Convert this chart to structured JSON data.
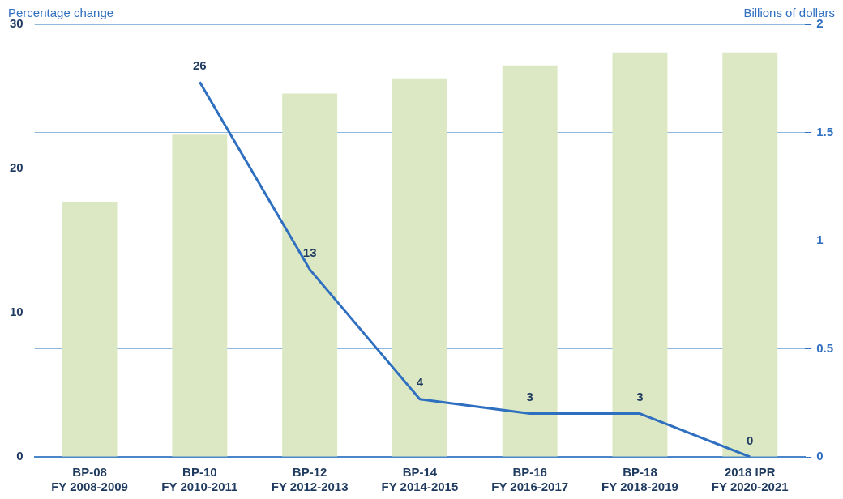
{
  "chart_data": {
    "type": "bar",
    "ylabel": "Percentage change",
    "y2label": "Billions of dollars",
    "categories": [
      "BP-08\nFY 2008-2009",
      "BP-10\nFY 2010-2011",
      "BP-12\nFY 2012-2013",
      "BP-14\nFY 2014-2015",
      "BP-16\nFY 2016-2017",
      "BP-18\nFY 2018-2019",
      "2018 IPR\nFY 2020-2021"
    ],
    "series": [
      {
        "axis": "y2",
        "color": "#dbe8c3",
        "values": [
          1.18,
          1.49,
          1.68,
          1.75,
          1.81,
          1.87,
          1.87
        ]
      },
      {
        "type": "line",
        "axis": "y",
        "color": "#2f6fc0",
        "values": [
          null,
          26,
          13,
          4,
          3,
          3,
          0
        ],
        "value_labels": [
          null,
          "26",
          "13",
          "4",
          "3",
          "3",
          "0"
        ]
      }
    ],
    "ylim": [
      0,
      30
    ],
    "yticks": [
      0,
      10,
      20,
      30
    ],
    "y2lim": [
      0,
      2
    ],
    "y2ticks": [
      0,
      0.5,
      1,
      1.5,
      2
    ],
    "grid": "y2",
    "marker": "none",
    "line_style": "solid"
  }
}
